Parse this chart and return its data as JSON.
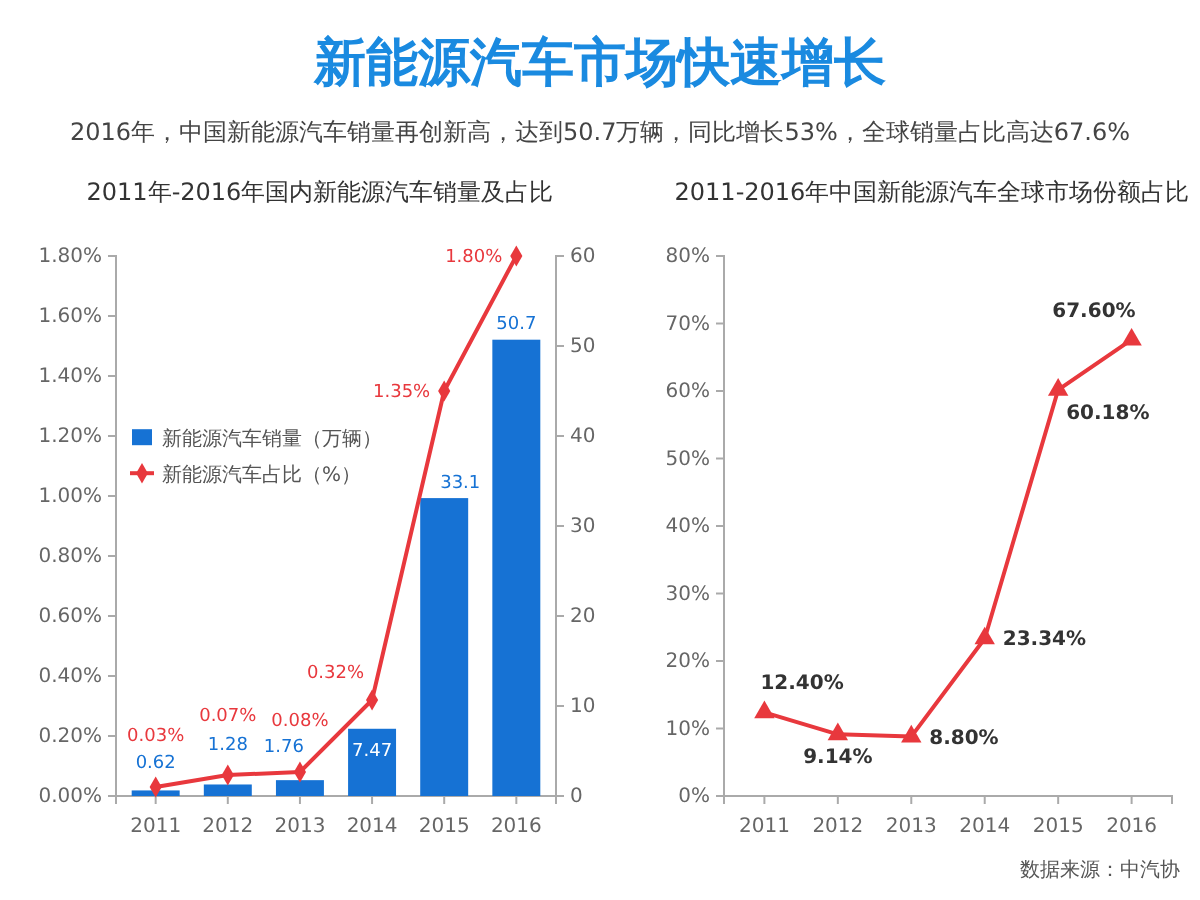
{
  "chart_data": [
    {
      "type": "other",
      "title": "新能源汽车市场快速增长",
      "subtitle": "2016年，中国新能源汽车销量再创新高，达到50.7万辆，同比增长53%，全球销量占比高达67.6%"
    },
    {
      "type": "bar",
      "title": "2011年-2016年国内新能源汽车销量及占比",
      "categories": [
        "2011",
        "2012",
        "2013",
        "2014",
        "2015",
        "2016"
      ],
      "series": [
        {
          "name": "新能源汽车销量（万辆）",
          "type": "bar",
          "axis": "y2",
          "color": "#1672d4",
          "values": [
            0.62,
            1.28,
            1.76,
            7.47,
            33.1,
            50.7
          ],
          "value_labels": [
            "0.62",
            "1.28",
            "1.76",
            "7.47",
            "33.1",
            "50.7"
          ]
        },
        {
          "name": "新能源汽车占比（%）",
          "type": "line",
          "color": "#e8383d",
          "values": [
            0.03,
            0.07,
            0.08,
            0.32,
            1.35,
            1.8
          ],
          "value_labels": [
            "0.03%",
            "0.07%",
            "0.08%",
            "0.32%",
            "1.35%",
            "1.80%"
          ]
        }
      ],
      "ylim": [
        0,
        1.8
      ],
      "yticks": [
        {
          "value": 0,
          "label": "0.00%"
        },
        {
          "value": 0.2,
          "label": "0.20%"
        },
        {
          "value": 0.4,
          "label": "0.40%"
        },
        {
          "value": 0.6,
          "label": "0.60%"
        },
        {
          "value": 0.8,
          "label": "0.80%"
        },
        {
          "value": 1.0,
          "label": "1.00%"
        },
        {
          "value": 1.2,
          "label": "1.20%"
        },
        {
          "value": 1.4,
          "label": "1.40%"
        },
        {
          "value": 1.6,
          "label": "1.60%"
        },
        {
          "value": 1.8,
          "label": "1.80%"
        }
      ],
      "y2lim": [
        0,
        60
      ],
      "y2ticks": [
        0,
        10,
        20,
        30,
        40,
        50,
        60
      ],
      "legend": "left",
      "marker": "diamond"
    },
    {
      "type": "line",
      "title": "2011-2016年中国新能源汽车全球市场份额占比",
      "categories": [
        "2011",
        "2012",
        "2013",
        "2014",
        "2015",
        "2016"
      ],
      "series": [
        {
          "color": "#e8383d",
          "values": [
            12.4,
            9.14,
            8.8,
            23.34,
            60.18,
            67.6
          ],
          "value_labels": [
            "12.40%",
            "9.14%",
            "8.80%",
            "23.34%",
            "60.18%",
            "67.60%"
          ]
        }
      ],
      "ylim": [
        0,
        80
      ],
      "yticks": [
        {
          "value": 0,
          "label": "0%"
        },
        {
          "value": 10,
          "label": "10%"
        },
        {
          "value": 20,
          "label": "20%"
        },
        {
          "value": 30,
          "label": "30%"
        },
        {
          "value": 40,
          "label": "40%"
        },
        {
          "value": 50,
          "label": "50%"
        },
        {
          "value": 60,
          "label": "60%"
        },
        {
          "value": 70,
          "label": "70%"
        },
        {
          "value": 80,
          "label": "80%"
        }
      ],
      "marker": "triangle",
      "annotations": [
        "数据来源：中汽协"
      ]
    }
  ]
}
